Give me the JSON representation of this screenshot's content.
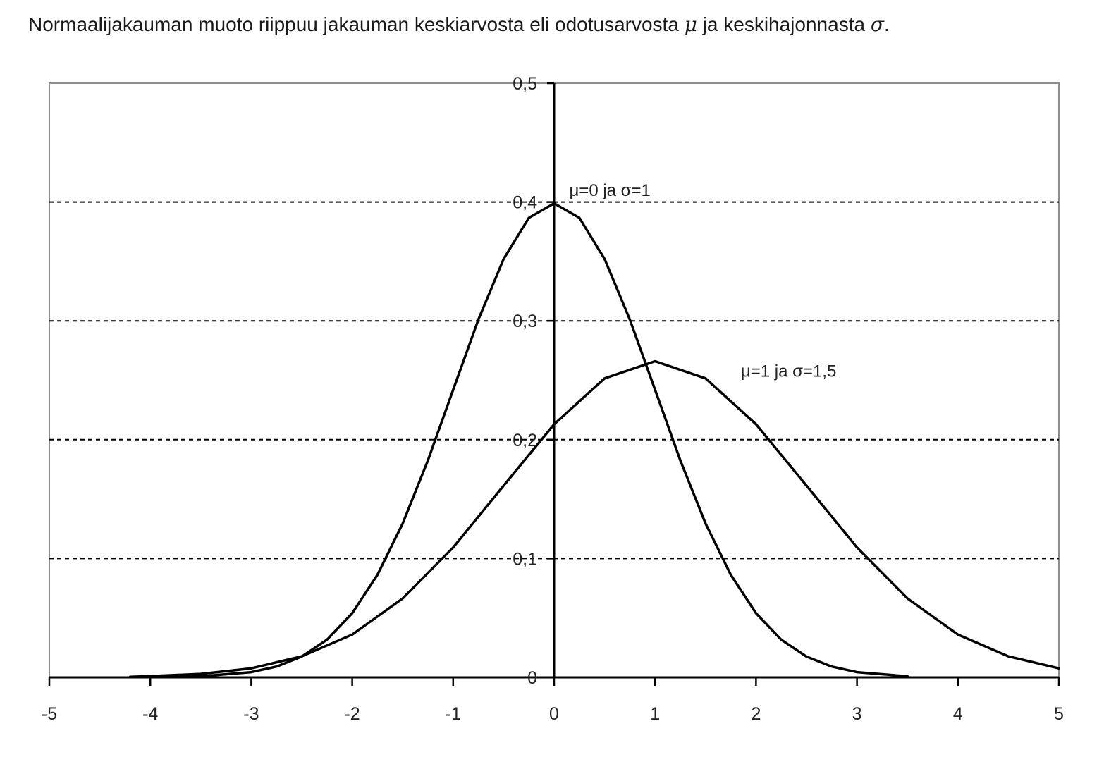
{
  "intro": {
    "text_before_mu": "Normaalijakauman muoto riippuu jakauman keskiarvosta eli odotusarvosta ",
    "mu_symbol": "μ",
    "text_between": " ja keskihajonnasta ",
    "sigma_symbol": "σ",
    "text_after": "."
  },
  "chart_data": {
    "type": "line",
    "title": "",
    "xlabel": "",
    "ylabel": "",
    "xlim": [
      -5,
      5
    ],
    "ylim": [
      0,
      0.5
    ],
    "x_ticks": [
      -5,
      -4,
      -3,
      -2,
      -1,
      0,
      1,
      2,
      3,
      4,
      5
    ],
    "x_tick_labels": [
      "-5",
      "-4",
      "-3",
      "-2",
      "-1",
      "0",
      "1",
      "2",
      "3",
      "4",
      "5"
    ],
    "y_ticks": [
      0,
      0.1,
      0.2,
      0.3,
      0.4,
      0.5
    ],
    "y_tick_labels": [
      "0",
      "0,1",
      "0,2",
      "0,3",
      "0,4",
      "0,5"
    ],
    "grid": "horizontal dashed",
    "legend": "none",
    "line_color": "#000000",
    "series": [
      {
        "name": "μ=0 ja σ=1",
        "x": [
          -4.2,
          -4,
          -3.5,
          -3,
          -2.75,
          -2.5,
          -2.25,
          -2,
          -1.75,
          -1.5,
          -1.25,
          -1,
          -0.75,
          -0.5,
          -0.25,
          0,
          0.25,
          0.5,
          0.75,
          1,
          1.25,
          1.5,
          1.75,
          2,
          2.25,
          2.5,
          2.75,
          3,
          3.5
        ],
        "y": [
          0.0001,
          0.0001,
          0.0009,
          0.0044,
          0.0091,
          0.0175,
          0.0317,
          0.054,
          0.0863,
          0.1295,
          0.1826,
          0.242,
          0.3011,
          0.3521,
          0.3867,
          0.3989,
          0.3867,
          0.3521,
          0.3011,
          0.242,
          0.1826,
          0.1295,
          0.0863,
          0.054,
          0.0317,
          0.0175,
          0.0091,
          0.0044,
          0.0009
        ]
      },
      {
        "name": "μ=1 ja σ=1,5",
        "x": [
          -4.2,
          -4,
          -3.5,
          -3,
          -2.5,
          -2,
          -1.5,
          -1,
          -0.5,
          0,
          0.5,
          1,
          1.5,
          2,
          2.5,
          3,
          3.5,
          4,
          4.5,
          5
        ],
        "y": [
          0.0005,
          0.001,
          0.0029,
          0.0076,
          0.0177,
          0.036,
          0.0664,
          0.1093,
          0.1613,
          0.213,
          0.2516,
          0.266,
          0.2516,
          0.213,
          0.1613,
          0.1093,
          0.0664,
          0.036,
          0.0177,
          0.0076
        ]
      }
    ],
    "annotations": [
      {
        "text": "μ=0 ja σ=1",
        "x": 0.15,
        "y": 0.405
      },
      {
        "text": "μ=1 ja σ=1,5",
        "x": 1.85,
        "y": 0.253
      }
    ]
  }
}
